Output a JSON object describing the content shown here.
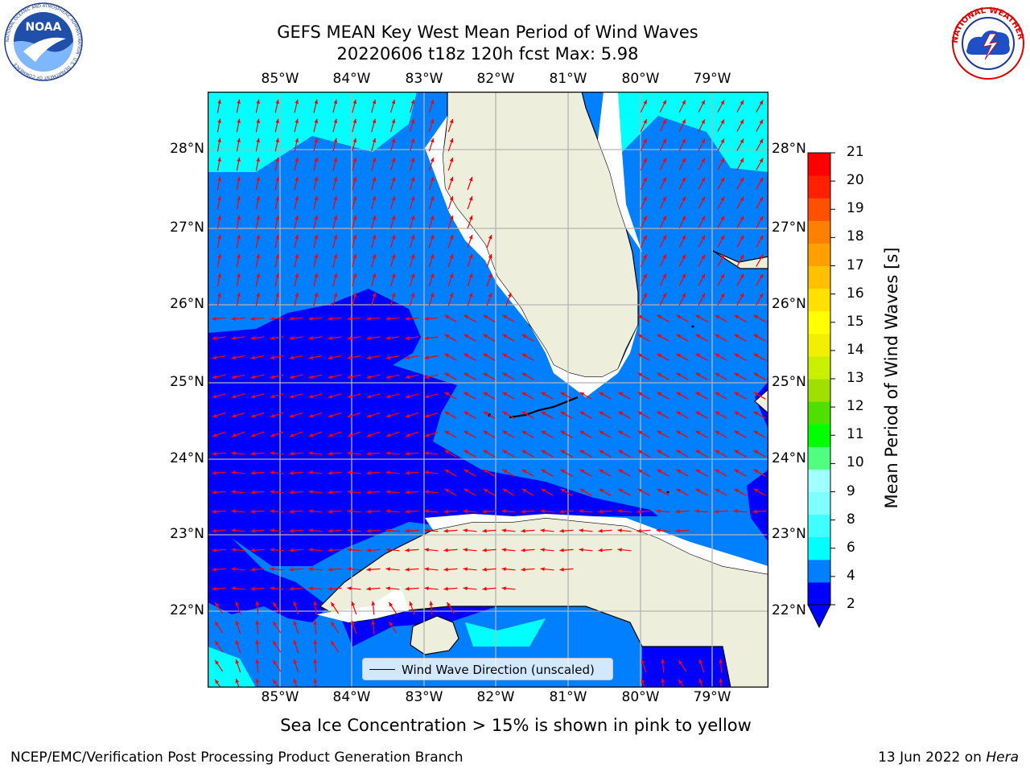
{
  "header": {
    "line1": "GEFS MEAN Key West Mean Period of Wind Waves",
    "line2": "20220606 t18z 120h fcst   Max: 5.98"
  },
  "logos": {
    "left": {
      "text": "NOAA",
      "ring": "NATIONAL OCEANIC AND ATMOSPHERIC ADMINISTRATION · U.S. DEPARTMENT OF COMMERCE"
    },
    "right": {
      "text": "NATIONAL WEATHER SERVICE"
    }
  },
  "map": {
    "lon_labels": [
      "85°W",
      "84°W",
      "83°W",
      "82°W",
      "81°W",
      "80°W",
      "79°W"
    ],
    "lat_labels": [
      "28°N",
      "27°N",
      "26°N",
      "25°N",
      "24°N",
      "23°N",
      "22°N"
    ],
    "extent": {
      "lon": [
        -86.0,
        -78.2
      ],
      "lat": [
        21.05,
        28.75
      ]
    },
    "legend_text": "Wind Wave Direction (unscaled)",
    "colors": {
      "land": "#eeeedc",
      "arrow": "#ff0000",
      "grid": "#b4b4b4",
      "coast": "#000000"
    }
  },
  "colorbar": {
    "label": "Mean Period of Wind Waves [s]",
    "ticks": [
      "21",
      "20",
      "19",
      "18",
      "17",
      "16",
      "15",
      "14",
      "13",
      "12",
      "11",
      "10",
      "9",
      "8",
      "6",
      "4",
      "2"
    ],
    "colors": [
      "#0000ff",
      "#007fff",
      "#00ffff",
      "#40ffff",
      "#7fffff",
      "#a0ffff",
      "#50ff80",
      "#00ff00",
      "#50e000",
      "#a0e000",
      "#c8f000",
      "#f0f000",
      "#ffff00",
      "#ffe000",
      "#ffc000",
      "#ffa000",
      "#ff8000",
      "#ff5000",
      "#ff2000",
      "#ff0000"
    ]
  },
  "note": "Sea Ice Concentration > 15% is shown in pink to yellow",
  "footer": {
    "left": "NCEP/EMC/Verification Post Processing Product Generation Branch",
    "right_date": "13 Jun 2022 on ",
    "right_host": "Hera"
  }
}
